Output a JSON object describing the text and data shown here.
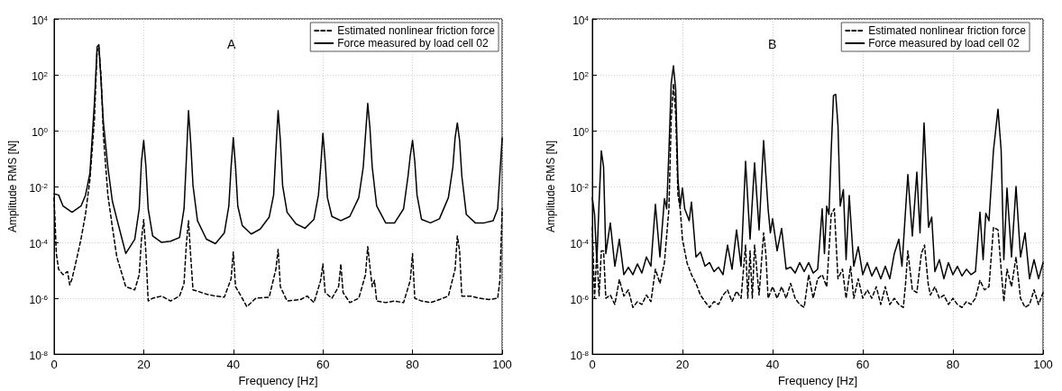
{
  "chart_data": [
    {
      "type": "line",
      "xlabel": "Frequency [Hz]",
      "ylabel": "Amplitude RMS [N]",
      "annotations": [
        "A"
      ],
      "log": "y",
      "grid": true,
      "legend": "top right",
      "marker": "none",
      "xlim": [
        0,
        100
      ],
      "xticks": [
        0,
        20,
        40,
        60,
        80,
        100
      ],
      "ylim": [
        1e-08,
        10000
      ],
      "yticks": [
        {
          "value": 1e-08,
          "label": "10$^{-8}$"
        },
        {
          "value": 1e-06,
          "label": "10$^{-6}$"
        },
        {
          "value": 0.0001,
          "label": "10$^{-4}$"
        },
        {
          "value": 0.01,
          "label": "10$^{-2}$"
        },
        {
          "value": 1,
          "label": "10$^{0}$"
        },
        {
          "value": 100,
          "label": "10$^{2}$"
        },
        {
          "value": 10000,
          "label": "10$^{4}$"
        }
      ],
      "series": [
        {
          "name": "Estimated nonlinear friction force",
          "color": "#000000",
          "line_style": "dashed",
          "x": [
            0,
            0.5,
            1,
            2,
            3,
            3.5,
            4,
            5,
            6,
            7,
            8,
            9,
            9.6,
            10,
            10.5,
            11,
            12,
            13,
            14,
            16,
            18,
            19,
            19.5,
            20,
            20.5,
            21,
            22,
            24,
            26,
            28,
            29,
            29.5,
            30,
            30.5,
            31,
            32,
            34,
            36,
            38,
            39.5,
            40,
            40.5,
            42,
            43,
            45,
            48,
            49.5,
            50,
            50.5,
            52,
            55,
            56.5,
            58,
            59.5,
            60,
            60.5,
            62,
            63.5,
            64,
            64.5,
            66,
            68,
            69.5,
            70,
            71,
            71.5,
            72,
            74,
            76,
            78,
            79.5,
            80,
            80.5,
            82,
            84,
            86,
            88,
            89.5,
            90,
            90.5,
            91,
            93,
            95,
            97,
            99,
            99.5,
            100
          ],
          "values": [
            0.004,
            4e-05,
            1.1e-05,
            7e-06,
            9e-06,
            3e-06,
            5e-06,
            2.4e-05,
            0.00013,
            0.001,
            0.018,
            2.5,
            700,
            900,
            80,
            0.7,
            0.005,
            0.00036,
            3e-05,
            2.6e-06,
            2e-06,
            7e-06,
            0.00013,
            0.00066,
            4e-05,
            8e-07,
            1e-06,
            1.2e-06,
            8e-07,
            1.2e-06,
            3.4e-06,
            8e-05,
            0.0006,
            3e-05,
            2e-06,
            1.8e-06,
            1.4e-06,
            1.2e-06,
            1.1e-06,
            5e-06,
            4.5e-05,
            2.6e-06,
            1e-06,
            5e-07,
            1e-06,
            1.1e-06,
            1.1e-05,
            5.6e-05,
            2.6e-06,
            8e-07,
            9e-07,
            1.2e-06,
            7e-07,
            4.4e-06,
            1.7e-05,
            1.6e-06,
            1e-06,
            2.6e-06,
            1.7e-05,
            1.6e-06,
            7e-07,
            1e-06,
            7e-06,
            7e-05,
            2.6e-06,
            4.4e-06,
            8e-07,
            7e-07,
            8e-07,
            7e-07,
            4.4e-06,
            4e-05,
            1e-06,
            8e-07,
            7e-07,
            9e-07,
            1.2e-06,
            1.1e-05,
            0.00017,
            5e-05,
            1.2e-06,
            1.2e-06,
            1e-06,
            9e-07,
            1e-06,
            4.4e-06,
            0.0016
          ]
        },
        {
          "name": "Force measured by load cell 02",
          "color": "#000000",
          "line_style": "solid",
          "x": [
            0,
            1,
            2,
            4,
            6,
            7,
            8,
            9,
            9.6,
            10,
            10.5,
            11,
            12,
            13,
            14,
            16,
            18,
            19,
            19.5,
            20,
            20.5,
            21,
            22,
            24,
            26,
            28,
            29,
            29.5,
            30,
            30.5,
            31,
            32,
            34,
            36,
            38,
            39,
            39.5,
            40,
            40.5,
            41,
            42,
            44,
            46,
            48,
            49,
            49.5,
            50,
            50.5,
            51,
            52,
            54,
            56,
            58,
            59,
            59.5,
            60,
            60.5,
            61,
            62,
            64,
            66,
            68,
            69,
            69.5,
            70,
            70.5,
            71,
            72,
            74,
            76,
            78,
            79,
            79.5,
            80,
            80.5,
            81,
            82,
            84,
            86,
            88,
            89,
            89.5,
            90,
            90.5,
            91,
            92,
            94,
            96,
            98,
            99,
            99.5,
            100
          ],
          "values": [
            0.0054,
            0.005,
            0.002,
            0.0012,
            0.002,
            0.0048,
            0.03,
            10,
            1000,
            1200,
            50,
            2,
            0.05,
            0.003,
            0.0007,
            4e-05,
            0.00013,
            0.0016,
            0.08,
            0.45,
            0.05,
            0.0016,
            0.00017,
            0.0001,
            0.00011,
            0.00015,
            0.0016,
            0.08,
            5.2,
            0.35,
            0.011,
            0.0006,
            0.00013,
            9e-05,
            0.00022,
            0.002,
            0.05,
            0.56,
            0.05,
            0.002,
            0.0004,
            0.0002,
            0.0003,
            0.0008,
            0.005,
            0.2,
            5.2,
            0.45,
            0.011,
            0.0012,
            0.00046,
            0.00032,
            0.00067,
            0.005,
            0.05,
            0.8,
            0.08,
            0.004,
            0.00085,
            0.0006,
            0.00085,
            0.004,
            0.05,
            0.7,
            9.5,
            1.2,
            0.05,
            0.002,
            0.0005,
            0.0005,
            0.0016,
            0.024,
            0.13,
            0.45,
            0.08,
            0.005,
            0.00067,
            0.0005,
            0.0007,
            0.004,
            0.05,
            0.56,
            1.9,
            0.45,
            0.024,
            0.001,
            0.0005,
            0.0005,
            0.0006,
            0.0016,
            0.03,
            0.54
          ]
        }
      ]
    },
    {
      "type": "line",
      "xlabel": "Frequency [Hz]",
      "ylabel": "Amplitude RMS [N]",
      "annotations": [
        "B"
      ],
      "log": "y",
      "grid": true,
      "legend": "top right",
      "marker": "none",
      "xlim": [
        0,
        100
      ],
      "xticks": [
        0,
        20,
        40,
        60,
        80,
        100
      ],
      "ylim": [
        1e-08,
        10000
      ],
      "yticks": [
        {
          "value": 1e-08,
          "label": "10$^{-8}$"
        },
        {
          "value": 1e-06,
          "label": "10$^{-6}$"
        },
        {
          "value": 0.0001,
          "label": "10$^{-4}$"
        },
        {
          "value": 0.01,
          "label": "10$^{-2}$"
        },
        {
          "value": 1,
          "label": "10$^{0}$"
        },
        {
          "value": 100,
          "label": "10$^{2}$"
        },
        {
          "value": 10000,
          "label": "10$^{4}$"
        }
      ],
      "series": [
        {
          "name": "Estimated nonlinear friction force",
          "color": "#000000",
          "line_style": "dashed",
          "x": [
            0,
            0.5,
            1,
            1.5,
            2,
            2.5,
            3,
            4,
            5,
            6,
            7,
            8,
            9,
            10,
            11,
            12,
            13,
            14,
            15,
            16,
            17,
            17.5,
            18,
            18.5,
            19,
            19.5,
            20,
            21,
            22,
            23,
            24,
            25,
            26,
            27,
            28,
            29,
            30,
            31,
            32,
            33,
            34,
            34.5,
            35,
            35.5,
            36,
            37,
            38,
            38.5,
            39,
            40,
            41,
            42,
            43,
            44,
            45,
            46,
            47,
            48,
            49,
            50,
            51,
            52,
            53,
            53.7,
            54.5,
            55.5,
            56.3,
            57.3,
            58,
            59,
            60,
            61,
            62,
            63,
            64,
            65,
            66,
            67,
            68,
            69,
            69.5,
            70,
            71,
            72,
            73,
            73.7,
            74.5,
            75,
            76,
            77,
            78,
            79,
            80,
            81,
            82,
            83,
            84,
            85,
            86,
            87,
            88,
            89,
            90,
            90.7,
            91.3,
            92,
            93,
            94,
            95,
            96,
            97,
            98,
            99,
            100
          ],
          "values": [
            0.00035,
            1e-06,
            5e-05,
            1.2e-06,
            5e-05,
            5e-05,
            1e-06,
            1.3e-06,
            6e-07,
            4.7e-06,
            1.2e-06,
            2e-06,
            4.7e-07,
            7.6e-07,
            6e-07,
            1.3e-06,
            7.6e-07,
            1.1e-05,
            3.4e-06,
            1.9e-05,
            0.0016,
            2.5,
            48,
            4,
            0.005,
            0.0016,
            0.00013,
            1.9e-05,
            7e-06,
            3.4e-06,
            1.3e-06,
            7.6e-07,
            4.7e-07,
            7.6e-07,
            6e-07,
            1.3e-06,
            2e-06,
            7.6e-07,
            1.8e-06,
            1e-06,
            8e-05,
            1e-06,
            5e-05,
            1e-06,
            8e-05,
            1.3e-06,
            0.00022,
            4e-05,
            1e-06,
            2.6e-06,
            1e-06,
            2.6e-06,
            1e-06,
            3.4e-06,
            1e-06,
            6e-07,
            4.7e-07,
            7e-06,
            1e-06,
            5e-06,
            7e-06,
            2.6e-06,
            0.001,
            0.0016,
            5e-06,
            1.1e-05,
            1e-06,
            1.4e-05,
            1e-06,
            5e-06,
            1e-06,
            2e-06,
            1e-06,
            2.6e-06,
            6e-07,
            2.6e-06,
            6e-07,
            1e-06,
            6e-07,
            4.7e-07,
            3.4e-06,
            5e-05,
            2e-06,
            1.6e-06,
            4e-05,
            8e-05,
            3.4e-06,
            1.3e-06,
            2.6e-06,
            1e-06,
            1.3e-06,
            6e-07,
            1e-06,
            6e-07,
            4.7e-07,
            7.6e-07,
            6e-07,
            1e-06,
            4.4e-06,
            2e-06,
            2.6e-06,
            0.00035,
            0.00028,
            1.1e-05,
            7.6e-07,
            1.1e-05,
            2.6e-06,
            3e-05,
            1e-06,
            4.7e-07,
            6e-07,
            2e-06,
            6e-07,
            1.6e-06
          ]
        },
        {
          "name": "Force measured by load cell 02",
          "color": "#000000",
          "line_style": "solid",
          "x": [
            0,
            0.5,
            1,
            1.5,
            2,
            2.5,
            3,
            4,
            5,
            6,
            7,
            8,
            9,
            10,
            11,
            12,
            13,
            14,
            15,
            16,
            16.5,
            17,
            17.5,
            18,
            18.5,
            19,
            19.5,
            20,
            20.5,
            21.5,
            22,
            23,
            24,
            25,
            26,
            27,
            28,
            29,
            30,
            31,
            32,
            33,
            34,
            35,
            36,
            37,
            38,
            39,
            39.5,
            40,
            41,
            42,
            43,
            44,
            45,
            46,
            47,
            48,
            49,
            50,
            51,
            51.5,
            52,
            52.5,
            53,
            53.5,
            54,
            54.5,
            55,
            55.7,
            56.3,
            57,
            58,
            59,
            60,
            61,
            62,
            63,
            64,
            65,
            66,
            67,
            68,
            68.7,
            70,
            71,
            72,
            72.7,
            73.6,
            74.6,
            75.3,
            76,
            77,
            78,
            79,
            80,
            81,
            82,
            83,
            84,
            85,
            86,
            86.7,
            87.3,
            88,
            89,
            90,
            90.7,
            91.3,
            92,
            93,
            94,
            95,
            96,
            97,
            98,
            99,
            100
          ],
          "values": [
            0.004,
            0.001,
            1.9e-05,
            0.0026,
            0.19,
            0.05,
            4e-05,
            0.0005,
            1.4e-05,
            0.00013,
            7e-06,
            1.3e-05,
            7e-06,
            1.7e-05,
            8e-06,
            3e-05,
            1.4e-05,
            0.0023,
            3e-05,
            0.0037,
            0.0016,
            0.2,
            48,
            210,
            29,
            0.018,
            0.002,
            0.0088,
            0.0016,
            0.0006,
            0.0028,
            3e-05,
            4.5e-05,
            1.4e-05,
            1.9e-05,
            9e-06,
            1.3e-05,
            7e-06,
            8e-05,
            1.1e-05,
            0.00028,
            1.4e-05,
            0.08,
            0.00013,
            0.07,
            0.00028,
            0.44,
            0.0016,
            0.00022,
            0.0007,
            5e-05,
            0.00032,
            1.1e-05,
            1.3e-05,
            8e-06,
            1.9e-05,
            9e-06,
            1.9e-05,
            8e-06,
            1.1e-05,
            0.0016,
            4e-05,
            0.002,
            0.001,
            0.2,
            18,
            20,
            1.5,
            0.002,
            0.0078,
            2.4e-05,
            0.0048,
            1.4e-05,
            7e-05,
            7e-06,
            1.9e-05,
            6.3e-06,
            1.3e-05,
            5e-06,
            1.4e-05,
            5e-06,
            4e-05,
            0.00013,
            1.4e-05,
            0.027,
            0.00017,
            0.033,
            0.00022,
            1.9,
            0.00035,
            0.0008,
            9e-06,
            2.4e-05,
            5e-06,
            1.9e-05,
            7e-06,
            1.4e-05,
            6.3e-06,
            1.1e-05,
            7e-06,
            9e-06,
            0.0012,
            2.4e-05,
            0.0011,
            0.0006,
            0.2,
            5.9,
            0.2,
            2.4e-05,
            0.0088,
            3e-05,
            0.01,
            3e-05,
            0.00022,
            5e-06,
            2.4e-05,
            5e-06,
            1.9e-05
          ]
        }
      ]
    }
  ]
}
